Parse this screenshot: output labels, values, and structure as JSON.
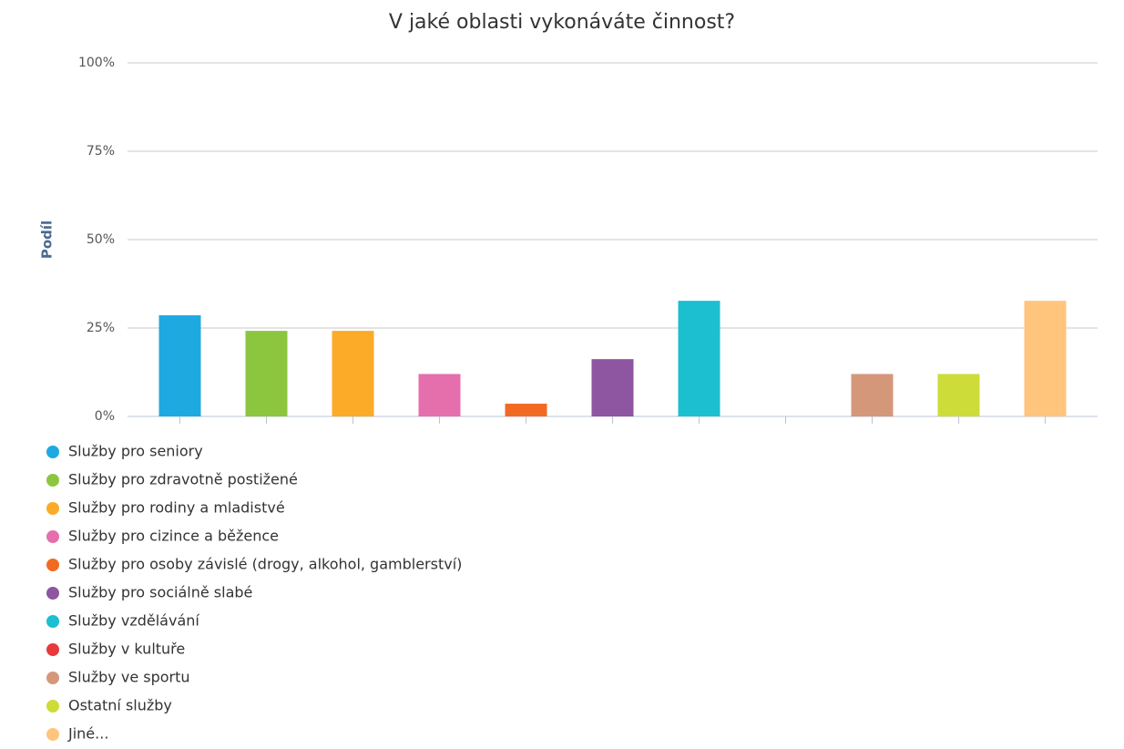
{
  "chart_data": {
    "type": "bar",
    "title": "V jaké oblasti vykonáváte činnost?",
    "y_label": "Podíl",
    "categories": [
      "Služby pro seniory",
      "Služby pro zdravotně postižené",
      "Služby pro rodiny a mladistvé",
      "Služby pro cizince a běžence",
      "Služby pro osoby závislé (drogy, alkohol, gamblerství)",
      "Služby pro sociálně slabé",
      "Služby vzdělávání",
      "Služby v kultuře",
      "Služby ve sportu",
      "Ostatní služby",
      "Jiné..."
    ],
    "values": [
      28.6,
      24.2,
      24.2,
      12,
      3.6,
      16.2,
      32.7,
      0,
      12,
      12,
      32.7
    ],
    "colors": [
      "#1ea9e1",
      "#8cc63f",
      "#fbab27",
      "#e56fad",
      "#f26a22",
      "#8e55a1",
      "#1bbfd0",
      "#e8393b",
      "#d5977a",
      "#cddc39",
      "#ffc57c"
    ],
    "ylim": [
      0,
      100
    ],
    "yticks": [
      {
        "value": 0,
        "label": "0%"
      },
      {
        "value": 25,
        "label": "25%"
      },
      {
        "value": 50,
        "label": "50%"
      },
      {
        "value": 75,
        "label": "75%"
      },
      {
        "value": 100,
        "label": "100%"
      }
    ],
    "grid": true,
    "legend": "bottom-left"
  }
}
